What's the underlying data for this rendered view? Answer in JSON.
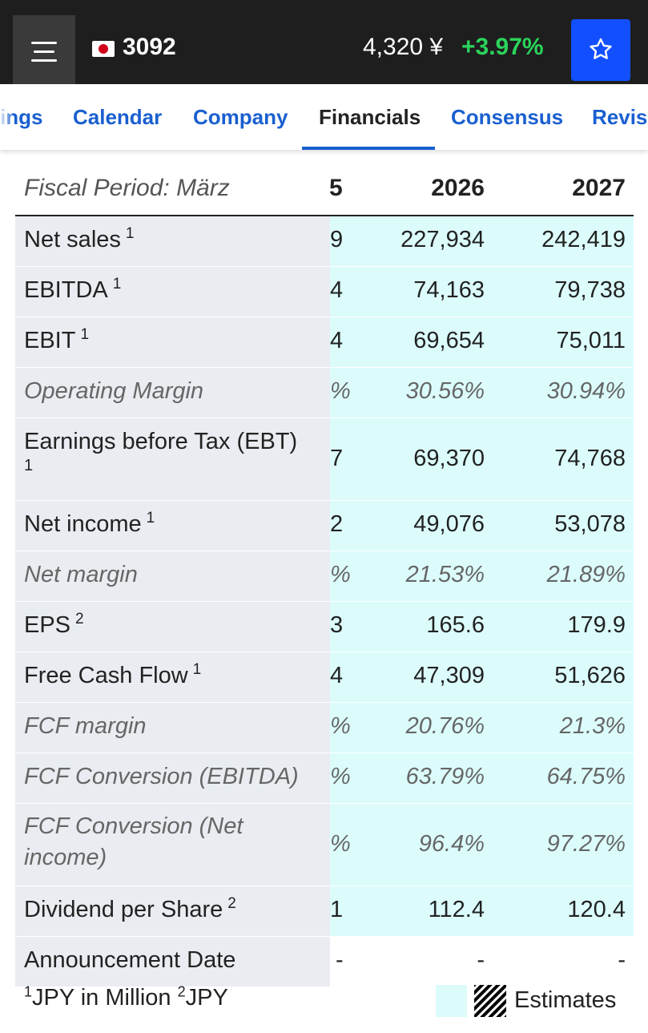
{
  "header": {
    "ticker": "3092",
    "price": "4,320 ¥",
    "change": "+3.97%",
    "colors": {
      "bar": "#1e1e1e",
      "positive": "#2bd45b",
      "accent": "#1250ff"
    },
    "icons": [
      "menu-icon",
      "japan-flag-icon",
      "star-icon"
    ]
  },
  "tabs": [
    {
      "label": "ings"
    },
    {
      "label": "Calendar"
    },
    {
      "label": "Company"
    },
    {
      "label": "Financials"
    },
    {
      "label": "Consensus"
    },
    {
      "label": "Revisi"
    }
  ],
  "table": {
    "header": {
      "label": "Fiscal Period: März",
      "cut": "5",
      "y2026": "2026",
      "y2027": "2027"
    },
    "rows": [
      {
        "label": "Net sales",
        "fn": "1",
        "cut": "9",
        "y2026": "227,934",
        "y2027": "242,419"
      },
      {
        "label": "EBITDA",
        "fn": "1",
        "cut": "4",
        "y2026": "74,163",
        "y2027": "79,738"
      },
      {
        "label": "EBIT",
        "fn": "1",
        "cut": "4",
        "y2026": "69,654",
        "y2027": "75,011"
      },
      {
        "label": "Operating Margin",
        "fn": "",
        "cut": "%",
        "y2026": "30.56%",
        "y2027": "30.94%"
      },
      {
        "label": "Earnings before Tax (EBT)",
        "label2": "1",
        "cut": "7",
        "y2026": "69,370",
        "y2027": "74,768"
      },
      {
        "label": "Net income",
        "fn": "1",
        "cut": "2",
        "y2026": "49,076",
        "y2027": "53,078"
      },
      {
        "label": "Net margin",
        "fn": "",
        "cut": "%",
        "y2026": "21.53%",
        "y2027": "21.89%"
      },
      {
        "label": "EPS",
        "fn": "2",
        "cut": "3",
        "y2026": "165.6",
        "y2027": "179.9"
      },
      {
        "label": "Free Cash Flow",
        "fn": "1",
        "cut": "4",
        "y2026": "47,309",
        "y2027": "51,626"
      },
      {
        "label": "FCF margin",
        "fn": "",
        "cut": "%",
        "y2026": "20.76%",
        "y2027": "21.3%"
      },
      {
        "label": "FCF Conversion (EBITDA)",
        "fn": "",
        "cut": "%",
        "y2026": "63.79%",
        "y2027": "64.75%"
      },
      {
        "label": "FCF Conversion (Net",
        "label2": "income)",
        "cut": "%",
        "y2026": "96.4%",
        "y2027": "97.27%"
      },
      {
        "label": "Dividend per Share",
        "fn": "2",
        "cut": "1",
        "y2026": "112.4",
        "y2027": "120.4"
      },
      {
        "label": "Announcement Date",
        "fn": "",
        "cut": "-",
        "y2026": "-",
        "y2027": "-"
      }
    ]
  },
  "footer": {
    "fn1_mark": "1",
    "fn1_text": "JPY in Million",
    "fn2_mark": "2",
    "fn2_text": "JPY",
    "legend_label": "Estimates",
    "colors": {
      "estimate_bg": "#dcfcfc",
      "label_bg": "#e9edf1"
    }
  }
}
